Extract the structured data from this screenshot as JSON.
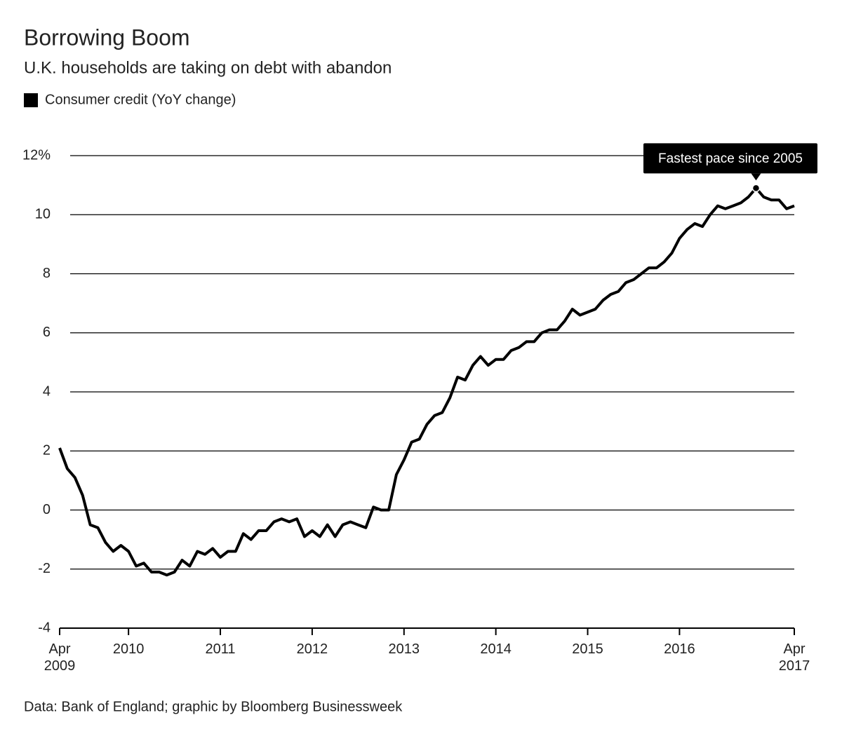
{
  "chart_data": {
    "type": "line",
    "title": "Borrowing Boom",
    "subtitle": "U.K. households are taking on debt with abandon",
    "source": "Data: Bank of England; graphic by Bloomberg Businessweek",
    "x": [
      "2009-04",
      "2009-05",
      "2009-06",
      "2009-07",
      "2009-08",
      "2009-09",
      "2009-10",
      "2009-11",
      "2009-12",
      "2010-01",
      "2010-02",
      "2010-03",
      "2010-04",
      "2010-05",
      "2010-06",
      "2010-07",
      "2010-08",
      "2010-09",
      "2010-10",
      "2010-11",
      "2010-12",
      "2011-01",
      "2011-02",
      "2011-03",
      "2011-04",
      "2011-05",
      "2011-06",
      "2011-07",
      "2011-08",
      "2011-09",
      "2011-10",
      "2011-11",
      "2011-12",
      "2012-01",
      "2012-02",
      "2012-03",
      "2012-04",
      "2012-05",
      "2012-06",
      "2012-07",
      "2012-08",
      "2012-09",
      "2012-10",
      "2012-11",
      "2012-12",
      "2013-01",
      "2013-02",
      "2013-03",
      "2013-04",
      "2013-05",
      "2013-06",
      "2013-07",
      "2013-08",
      "2013-09",
      "2013-10",
      "2013-11",
      "2013-12",
      "2014-01",
      "2014-02",
      "2014-03",
      "2014-04",
      "2014-05",
      "2014-06",
      "2014-07",
      "2014-08",
      "2014-09",
      "2014-10",
      "2014-11",
      "2014-12",
      "2015-01",
      "2015-02",
      "2015-03",
      "2015-04",
      "2015-05",
      "2015-06",
      "2015-07",
      "2015-08",
      "2015-09",
      "2015-10",
      "2015-11",
      "2015-12",
      "2016-01",
      "2016-02",
      "2016-03",
      "2016-04",
      "2016-05",
      "2016-06",
      "2016-07",
      "2016-08",
      "2016-09",
      "2016-10",
      "2016-11",
      "2016-12",
      "2017-01",
      "2017-02",
      "2017-03",
      "2017-04"
    ],
    "series": [
      {
        "name": "Consumer credit (YoY change)",
        "color": "#000000",
        "values": [
          2.1,
          1.4,
          1.1,
          0.5,
          -0.5,
          -0.6,
          -1.1,
          -1.4,
          -1.2,
          -1.4,
          -1.9,
          -1.8,
          -2.1,
          -2.1,
          -2.2,
          -2.1,
          -1.7,
          -1.9,
          -1.4,
          -1.5,
          -1.3,
          -1.6,
          -1.4,
          -1.4,
          -0.8,
          -1.0,
          -0.7,
          -0.7,
          -0.4,
          -0.3,
          -0.4,
          -0.3,
          -0.9,
          -0.7,
          -0.9,
          -0.5,
          -0.9,
          -0.5,
          -0.4,
          -0.5,
          -0.6,
          0.1,
          0.0,
          0.0,
          1.2,
          1.7,
          2.3,
          2.4,
          2.9,
          3.2,
          3.3,
          3.8,
          4.5,
          4.4,
          4.9,
          5.2,
          4.9,
          5.1,
          5.1,
          5.4,
          5.5,
          5.7,
          5.7,
          6.0,
          6.1,
          6.1,
          6.4,
          6.8,
          6.6,
          6.7,
          6.8,
          7.1,
          7.3,
          7.4,
          7.7,
          7.8,
          8.0,
          8.2,
          8.2,
          8.4,
          8.7,
          9.2,
          9.5,
          9.7,
          9.6,
          10.0,
          10.3,
          10.2,
          10.3,
          10.4,
          10.6,
          10.9,
          10.6,
          10.5,
          10.5,
          10.2,
          10.3
        ]
      }
    ],
    "annotation": {
      "text": "Fastest pace since 2005",
      "x": "2016-11"
    },
    "xlim": [
      "2009-04",
      "2017-04"
    ],
    "xticks": [
      {
        "value": "2009-04",
        "label": "Apr 2009"
      },
      {
        "value": "2010-01",
        "label": "2010"
      },
      {
        "value": "2011-01",
        "label": "2011"
      },
      {
        "value": "2012-01",
        "label": "2012"
      },
      {
        "value": "2013-01",
        "label": "2013"
      },
      {
        "value": "2014-01",
        "label": "2014"
      },
      {
        "value": "2015-01",
        "label": "2015"
      },
      {
        "value": "2016-01",
        "label": "2016"
      },
      {
        "value": "2017-04",
        "label": "Apr 2017"
      }
    ],
    "ylim": [
      -4,
      12
    ],
    "yticks": [
      -4,
      -2,
      0,
      2,
      4,
      6,
      8,
      10,
      {
        "value": 12,
        "label": "12%"
      }
    ],
    "grid": true,
    "legend": "top-left"
  }
}
